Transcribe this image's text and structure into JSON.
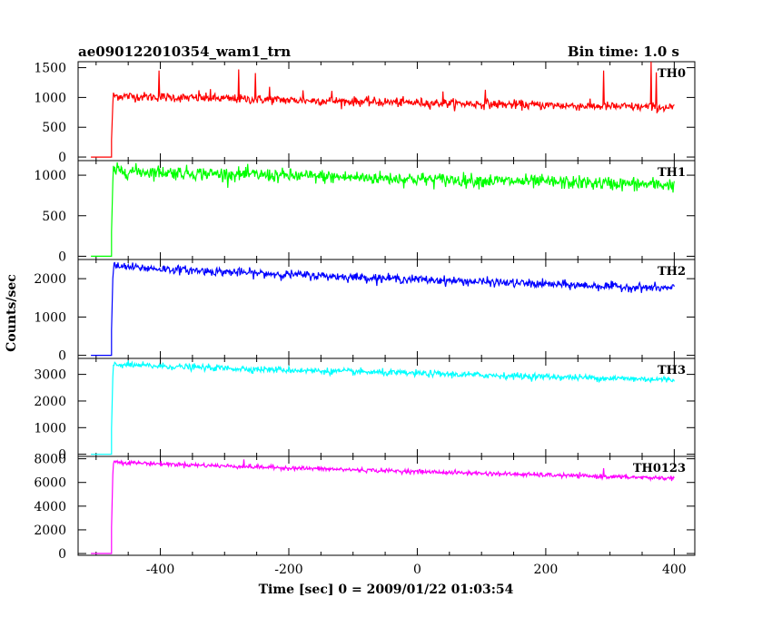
{
  "chart_data": {
    "type": "line",
    "title": "ae090122010354_wam1_trn",
    "subtitle": "Bin time: 1.0 s",
    "xlabel": "Time [sec] 0 = 2009/01/22 01:03:54",
    "ylabel": "Counts/sec",
    "x_ticks": [
      -400,
      -200,
      0,
      200,
      400
    ],
    "xlim": [
      -528,
      432
    ],
    "grid": false,
    "shared_x": true,
    "onset_time": -476,
    "data_end_time": 400,
    "panels": [
      {
        "name": "TH0",
        "color": "#ff0000",
        "ylim": [
          -60,
          1600
        ],
        "y_ticks": [
          0,
          500,
          1000,
          1500
        ],
        "pre_level": 0,
        "peak_level": 1030,
        "end_level": 830,
        "noise": 38,
        "spikes": [
          [
            -402,
            1450
          ],
          [
            -340,
            1120
          ],
          [
            -322,
            1140
          ],
          [
            -278,
            1470
          ],
          [
            -252,
            1410
          ],
          [
            -230,
            1180
          ],
          [
            -178,
            1120
          ],
          [
            -133,
            1110
          ],
          [
            40,
            1100
          ],
          [
            106,
            1130
          ],
          [
            290,
            1450
          ],
          [
            364,
            1600
          ],
          [
            372,
            1420
          ]
        ]
      },
      {
        "name": "TH1",
        "color": "#00ff00",
        "ylim": [
          -40,
          1180
        ],
        "y_ticks": [
          0,
          500,
          1000
        ],
        "pre_level": 0,
        "peak_level": 1060,
        "end_level": 880,
        "noise": 42,
        "spikes": []
      },
      {
        "name": "TH2",
        "color": "#0000ff",
        "ylim": [
          -80,
          2500
        ],
        "y_ticks": [
          0,
          1000,
          2000
        ],
        "pre_level": 0,
        "peak_level": 2330,
        "end_level": 1740,
        "noise": 55,
        "spikes": []
      },
      {
        "name": "TH3",
        "color": "#00ffff",
        "ylim": [
          -80,
          3600
        ],
        "y_ticks": [
          0,
          1000,
          2000,
          3000
        ],
        "pre_level": 0,
        "peak_level": 3380,
        "end_level": 2800,
        "noise": 60,
        "spikes": []
      },
      {
        "name": "TH0123",
        "color": "#ff00ff",
        "ylim": [
          -150,
          8200
        ],
        "y_ticks": [
          0,
          2000,
          4000,
          6000,
          8000
        ],
        "pre_level": 0,
        "peak_level": 7750,
        "end_level": 6350,
        "noise": 90,
        "spikes": [
          [
            -270,
            7950
          ],
          [
            290,
            7200
          ]
        ]
      }
    ]
  }
}
